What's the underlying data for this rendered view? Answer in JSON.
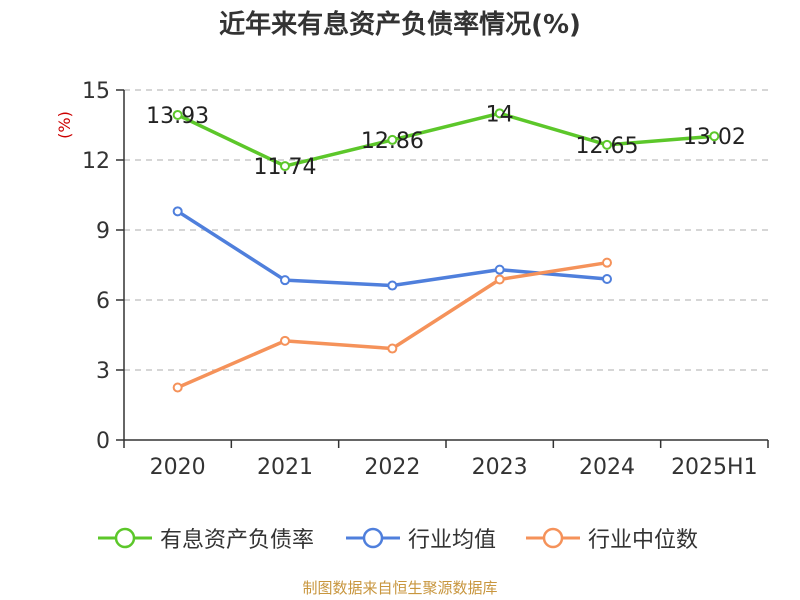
{
  "title": "近年来有息资产负债率情况(%)",
  "source": "制图数据来自恒生聚源数据库",
  "chart_data": {
    "type": "line",
    "title": "近年来有息资产负债率情况(%)",
    "ylabel": "(%)",
    "ylabel_color": "#cc0000",
    "ylim": [
      0,
      15
    ],
    "yticks": [
      0,
      3,
      6,
      9,
      12,
      15
    ],
    "categories": [
      "2020",
      "2021",
      "2022",
      "2023",
      "2024",
      "2025H1"
    ],
    "grid": true,
    "legend_position": "bottom",
    "series": [
      {
        "name": "有息资产负债率",
        "color": "#5cc72a",
        "values": [
          13.93,
          11.74,
          12.86,
          14,
          12.65,
          13.02
        ],
        "labels": [
          "13.93",
          "11.74",
          "12.86",
          "14",
          "12.65",
          "13.02"
        ]
      },
      {
        "name": "行业均值",
        "color": "#4f7fdc",
        "values": [
          9.8,
          6.85,
          6.62,
          7.3,
          6.9,
          null
        ]
      },
      {
        "name": "行业中位数",
        "color": "#f5925a",
        "values": [
          2.25,
          4.25,
          3.92,
          6.88,
          7.6,
          null
        ]
      }
    ]
  }
}
